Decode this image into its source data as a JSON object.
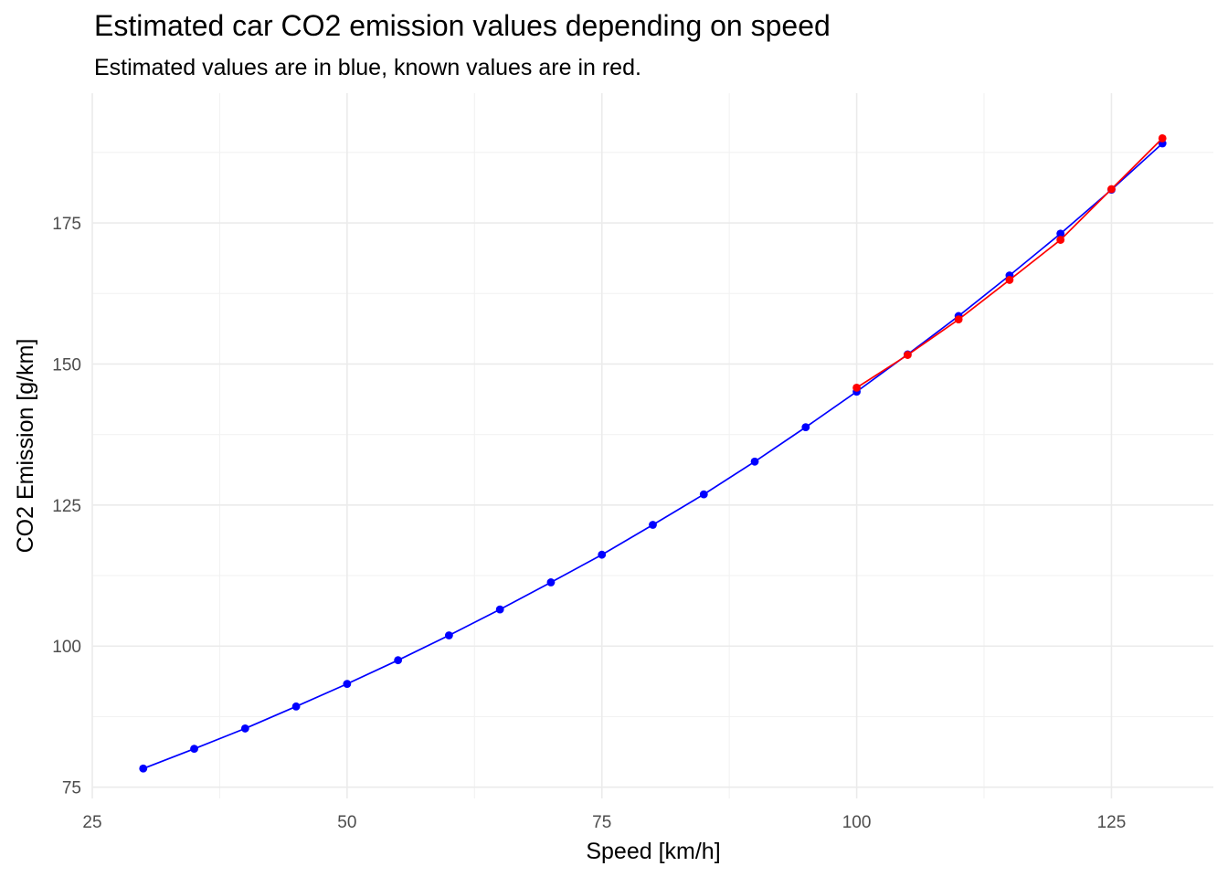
{
  "chart_data": {
    "type": "line",
    "title": "Estimated car CO2 emission values depending on speed",
    "subtitle": "Estimated values are in blue, known values are in red.",
    "xlabel": "Speed [km/h]",
    "ylabel": "CO2 Emission [g/km]",
    "xlim": [
      25,
      135
    ],
    "ylim": [
      73,
      198
    ],
    "x_ticks": [
      25,
      50,
      75,
      100,
      125
    ],
    "y_ticks": [
      75,
      100,
      125,
      150,
      175
    ],
    "grid": true,
    "legend": "none",
    "series": [
      {
        "color": "#0000ff",
        "x": [
          30,
          35,
          40,
          45,
          50,
          55,
          60,
          65,
          70,
          75,
          80,
          85,
          90,
          95,
          100,
          105,
          110,
          115,
          120,
          125,
          130
        ],
        "y": [
          78.3,
          81.8,
          85.4,
          89.3,
          93.3,
          97.5,
          101.9,
          106.5,
          111.3,
          116.2,
          121.5,
          126.9,
          132.7,
          138.8,
          145.1,
          151.7,
          158.5,
          165.7,
          173.1,
          180.9,
          189.1
        ]
      },
      {
        "color": "#ff0000",
        "x": [
          100,
          105,
          110,
          115,
          120,
          125,
          130
        ],
        "y": [
          145.8,
          151.6,
          157.9,
          164.9,
          172.0,
          181.0,
          190.0
        ]
      }
    ]
  }
}
